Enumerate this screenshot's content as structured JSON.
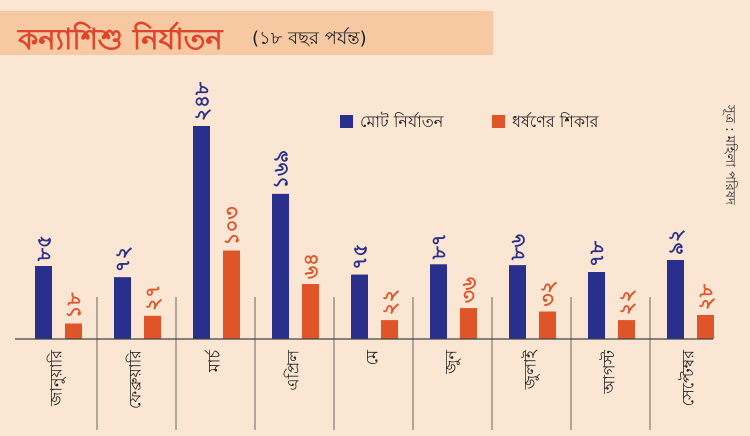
{
  "title": "কন্যাশিশু নির্যাতন",
  "subtitle": "(১৮ বছর পর্যন্ত)",
  "source": "সূত্র : মহিলা পরিষদ",
  "colors": {
    "total": "#2b2f8c",
    "rape": "#e0542a",
    "title": "#e0452a"
  },
  "chart_data": {
    "type": "bar",
    "title": "কন্যাশিশু নির্যাতন",
    "subtitle": "(১৮ বছর পর্যন্ত)",
    "categories": [
      "জানুয়ারি",
      "ফেব্রুয়ারি",
      "মার্চ",
      "এপ্রিল",
      "মে",
      "জুন",
      "জুলাই",
      "আগস্ট",
      "সেপ্টেম্বর"
    ],
    "series": [
      {
        "name": "মোট নির্যাতন",
        "values": [
          85,
          72,
          248,
          169,
          75,
          87,
          86,
          78,
          92
        ],
        "labels": [
          "৮৫",
          "৭২",
          "২৪৮",
          "১৬৯",
          "৭৫",
          "৮৭",
          "৮৬",
          "৭৮",
          "৯২"
        ]
      },
      {
        "name": "ধর্ষণের শিকার",
        "values": [
          18,
          27,
          103,
          64,
          22,
          36,
          32,
          22,
          28
        ],
        "labels": [
          "১৮",
          "২৭",
          "১০৩",
          "৬৪",
          "২২",
          "৩৬",
          "৩২",
          "২২",
          "২৮"
        ]
      }
    ],
    "legend_position": "top-right",
    "grid": false
  }
}
